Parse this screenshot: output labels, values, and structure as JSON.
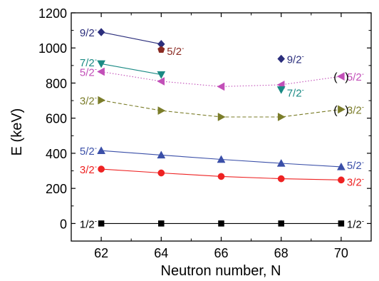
{
  "chart_data": {
    "type": "scatter",
    "xlabel": "Neutron number, N",
    "ylabel": "E (keV)",
    "xlim": [
      61,
      71
    ],
    "ylim": [
      -100,
      1200
    ],
    "xticks": [
      62,
      64,
      66,
      68,
      70
    ],
    "yticks": [
      0,
      200,
      400,
      600,
      800,
      1000,
      1200
    ],
    "grid": false,
    "series": [
      {
        "key": "s12m",
        "marker": "square",
        "color": "#000000",
        "line": "solid",
        "connected": true,
        "points": [
          [
            62,
            0
          ],
          [
            64,
            0
          ],
          [
            66,
            0
          ],
          [
            68,
            0
          ],
          [
            70,
            0
          ]
        ]
      },
      {
        "key": "s32m",
        "marker": "circle",
        "color": "#ee2222",
        "line": "solid",
        "connected": true,
        "points": [
          [
            62,
            310
          ],
          [
            64,
            288
          ],
          [
            66,
            268
          ],
          [
            68,
            255
          ],
          [
            70,
            248
          ]
        ]
      },
      {
        "key": "s52m",
        "marker": "triangle-up",
        "color": "#3a4fa8",
        "line": "solid",
        "connected": true,
        "points": [
          [
            62,
            415
          ],
          [
            64,
            390
          ],
          [
            66,
            365
          ],
          [
            68,
            343
          ],
          [
            70,
            323
          ]
        ]
      },
      {
        "key": "s32m-b",
        "marker": "triangle-right",
        "color": "#7b7d2a",
        "line": "dashed",
        "connected": true,
        "points": [
          [
            62,
            702
          ],
          [
            64,
            643
          ],
          [
            66,
            607
          ],
          [
            68,
            607
          ],
          [
            70,
            650
          ]
        ]
      },
      {
        "key": "s52m-b",
        "marker": "triangle-left",
        "color": "#c24fb8",
        "line": "dotted",
        "connected": true,
        "points": [
          [
            62,
            865
          ],
          [
            64,
            810
          ],
          [
            66,
            780
          ],
          [
            68,
            790
          ],
          [
            70,
            838
          ]
        ]
      },
      {
        "key": "s72m",
        "marker": "triangle-down",
        "color": "#1a8a84",
        "line": "solid",
        "connected": true,
        "points": [
          [
            62,
            910
          ],
          [
            64,
            848
          ]
        ]
      },
      {
        "key": "s72m-b",
        "marker": "triangle-down",
        "color": "#1a8a84",
        "line": "none",
        "connected": false,
        "points": [
          [
            68,
            762
          ]
        ]
      },
      {
        "key": "s92m",
        "marker": "diamond",
        "color": "#2b2e7c",
        "line": "solid",
        "connected": true,
        "points": [
          [
            62,
            1090
          ],
          [
            64,
            1022
          ]
        ]
      },
      {
        "key": "s92m-b",
        "marker": "diamond",
        "color": "#2b2e7c",
        "line": "none",
        "connected": false,
        "points": [
          [
            68,
            938
          ]
        ]
      },
      {
        "key": "s52m-c",
        "marker": "pentagon",
        "color": "#8a2a22",
        "line": "none",
        "connected": false,
        "points": [
          [
            64,
            990
          ]
        ]
      }
    ],
    "annotations": [
      {
        "text": "9/2",
        "x": 62,
        "y": 1090,
        "anchor": "end",
        "color": "#2b2e7c"
      },
      {
        "text": "5/2",
        "x": 64,
        "y": 985,
        "anchor": "start",
        "color": "#8a2a22"
      },
      {
        "text": "7/2",
        "x": 62,
        "y": 920,
        "anchor": "end",
        "color": "#1a8a84"
      },
      {
        "text": "5/2",
        "x": 62,
        "y": 865,
        "anchor": "end",
        "color": "#c24fb8"
      },
      {
        "text": "3/2",
        "x": 62,
        "y": 702,
        "anchor": "end",
        "color": "#7b7d2a"
      },
      {
        "text": "5/2",
        "x": 62,
        "y": 415,
        "anchor": "end",
        "color": "#3a4fa8"
      },
      {
        "text": "3/2",
        "x": 62,
        "y": 310,
        "anchor": "end",
        "color": "#ee2222"
      },
      {
        "text": "1/2",
        "x": 62,
        "y": 0,
        "anchor": "end",
        "color": "#000000"
      },
      {
        "text": "9/2",
        "x": 68,
        "y": 938,
        "anchor": "start",
        "color": "#2b2e7c"
      },
      {
        "text": "7/2",
        "x": 68,
        "y": 748,
        "anchor": "start",
        "color": "#1a8a84"
      },
      {
        "text": "5/2",
        "x": 70,
        "y": 838,
        "anchor": "start",
        "color": "#c24fb8"
      },
      {
        "text": "3/2",
        "x": 70,
        "y": 650,
        "anchor": "start",
        "color": "#7b7d2a"
      },
      {
        "text": "5/2",
        "x": 70,
        "y": 335,
        "anchor": "start",
        "color": "#3a4fa8"
      },
      {
        "text": "3/2",
        "x": 70,
        "y": 240,
        "anchor": "start",
        "color": "#ee2222"
      },
      {
        "text": "1/2",
        "x": 70,
        "y": 0,
        "anchor": "start",
        "color": "#000000"
      }
    ],
    "parenthesized": [
      {
        "text": "(",
        "x": 70,
        "y": 838,
        "side": "left",
        "color": "#000000"
      },
      {
        "text": ")",
        "x": 70,
        "y": 838,
        "side": "right",
        "color": "#000000"
      },
      {
        "text": "(",
        "x": 70,
        "y": 650,
        "side": "left",
        "color": "#000000"
      },
      {
        "text": ")",
        "x": 70,
        "y": 650,
        "side": "right",
        "color": "#000000"
      }
    ],
    "parity_mark": "-"
  }
}
